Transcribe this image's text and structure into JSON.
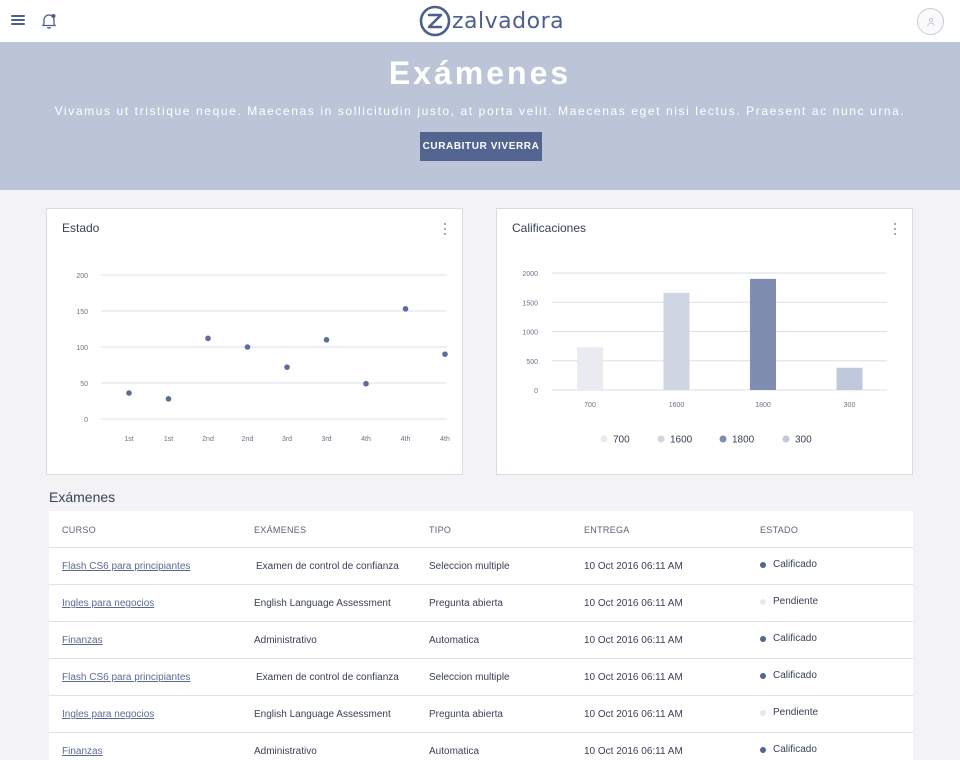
{
  "header": {
    "logo_text": "zalvadora",
    "icons": [
      "menu-icon",
      "bell-icon",
      "user-icon"
    ]
  },
  "hero": {
    "title": "Exámenes",
    "subtitle": "Vivamus ut tristique neque. Maecenas in sollicitudin justo, at porta velit. Maecenas eget nisi lectus. Praesent ac nunc urna.",
    "button_label": "CURABITUR VIVERRA",
    "colors": {
      "background": "#bcc4d8",
      "button": "#52648f"
    }
  },
  "cards": {
    "estado_title": "Estado",
    "calificaciones_title": "Calificaciones"
  },
  "chart_data": [
    {
      "type": "scatter",
      "title": "Estado",
      "categories": [
        "1st",
        "1st",
        "2nd",
        "2nd",
        "3rd",
        "3rd",
        "4th",
        "4th",
        "4th"
      ],
      "values": [
        36,
        28,
        112,
        100,
        72,
        110,
        49,
        153,
        90
      ],
      "ylim": [
        0,
        200
      ],
      "yticks": [
        0,
        50,
        100,
        150,
        200
      ],
      "grid": true,
      "color": "#5d6d96"
    },
    {
      "type": "bar",
      "title": "Calificaciones",
      "categories": [
        "700",
        "1600",
        "1800",
        "300"
      ],
      "values": [
        730,
        1660,
        1900,
        380
      ],
      "ylim": [
        0,
        2000
      ],
      "yticks": [
        0,
        500,
        1000,
        1500,
        2000
      ],
      "grid": true,
      "colors": [
        "#e9ebf1",
        "#d0d5e3",
        "#7f8db0",
        "#c0c8dc"
      ],
      "legend": [
        "700",
        "1600",
        "1800",
        "300"
      ],
      "legend_placement": "bottom"
    }
  ],
  "table": {
    "title": "Exámenes",
    "headers": [
      "CURSO",
      "EXÁMENES",
      "TIPO",
      "ENTREGA",
      "ESTADO"
    ],
    "status_colors": {
      "Calificado": "#52648f",
      "Pendiente": "#e6e8ee"
    },
    "rows": [
      {
        "course": "Flash CS6 para principiantes",
        "exam": "Examen de control de confianza",
        "type": "Seleccion multiple",
        "date": "10 Oct 2016 06:11 AM",
        "status": "Calificado"
      },
      {
        "course": "Ingles para negocios",
        "exam": "English Language Assessment",
        "type": "Pregunta abierta",
        "date": "10 Oct 2016 06:11 AM",
        "status": "Pendiente"
      },
      {
        "course": "Finanzas",
        "exam": "Administrativo",
        "type": "Automatica",
        "date": "10 Oct 2016 06:11 AM",
        "status": "Calificado"
      },
      {
        "course": "Flash CS6 para principiantes",
        "exam": "Examen de control de confianza",
        "type": "Seleccion multiple",
        "date": "10 Oct 2016 06:11 AM",
        "status": "Calificado"
      },
      {
        "course": "Ingles para negocios",
        "exam": "English Language Assessment",
        "type": "Pregunta abierta",
        "date": "10 Oct 2016 06:11 AM",
        "status": "Pendiente"
      },
      {
        "course": "Finanzas",
        "exam": "Administrativo",
        "type": "Automatica",
        "date": "10 Oct 2016 06:11 AM",
        "status": "Calificado"
      }
    ]
  }
}
